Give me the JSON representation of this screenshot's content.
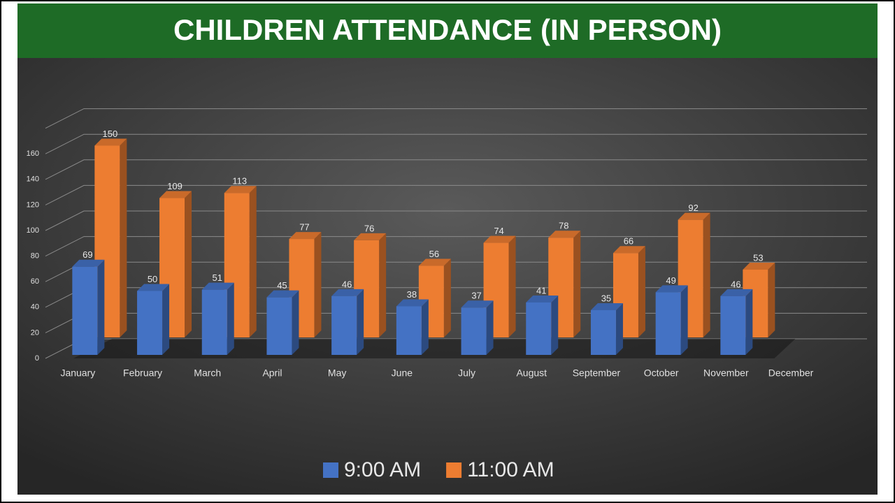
{
  "chart_data": {
    "type": "bar3d",
    "title": "CHILDREN ATTENDANCE (IN PERSON)",
    "categories": [
      "January",
      "February",
      "March",
      "April",
      "May",
      "June",
      "July",
      "August",
      "September",
      "October",
      "November",
      "December"
    ],
    "series": [
      {
        "name": "9:00 AM",
        "color": "#4472c4",
        "values": [
          69,
          50,
          51,
          45,
          46,
          38,
          37,
          41,
          35,
          49,
          46,
          null
        ]
      },
      {
        "name": "11:00 AM",
        "color": "#ed7d31",
        "values": [
          150,
          109,
          113,
          77,
          76,
          56,
          74,
          78,
          66,
          92,
          53,
          null
        ]
      }
    ],
    "ylim": [
      0,
      180
    ],
    "yticks": [
      0,
      20,
      40,
      60,
      80,
      100,
      120,
      140,
      160
    ],
    "grid": true,
    "legend": "bottom"
  }
}
